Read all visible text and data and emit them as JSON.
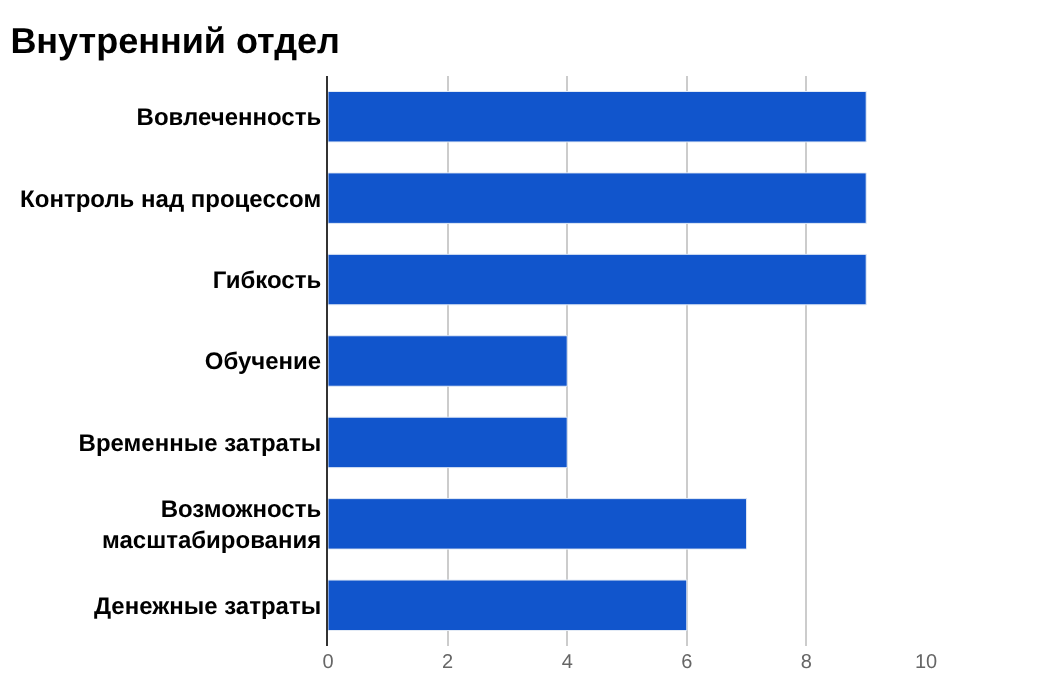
{
  "chart_data": {
    "type": "bar",
    "orientation": "horizontal",
    "title": "Внутренний отдел",
    "categories": [
      "Вовлеченность",
      "Контроль над процессом",
      "Гибкость",
      "Обучение",
      "Временные затраты",
      "Возможность\nмасштабирования",
      "Денежные затраты"
    ],
    "values": [
      9,
      9,
      9,
      4,
      4,
      7,
      6
    ],
    "color": "#1155cc",
    "xlim": [
      0,
      10
    ],
    "xticks": [
      0,
      2,
      4,
      6,
      8,
      10
    ],
    "grid": "x"
  }
}
